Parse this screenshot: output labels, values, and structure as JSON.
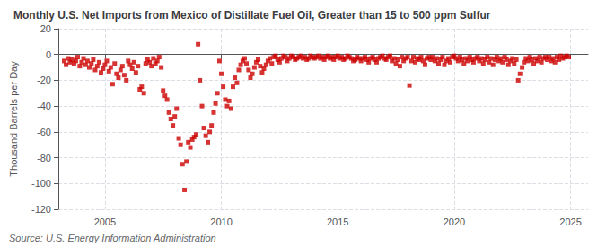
{
  "chart_data": {
    "type": "scatter",
    "title": "Monthly U.S. Net Imports from Mexico of Distillate Fuel Oil, Greater than 15 to 500 ppm Sulfur",
    "ylabel": "Thousand Barrels per Day",
    "annotation": "Source: U.S. Energy Information Administration",
    "color": "#cc0000",
    "marker": "square",
    "grid": true,
    "xlim": [
      2003.0,
      2025.75
    ],
    "xticks": [
      2005,
      2010,
      2015,
      2020,
      2025
    ],
    "ylim": [
      -120,
      20
    ],
    "yticks": [
      -120,
      -100,
      -80,
      -60,
      -40,
      -20,
      0,
      20
    ],
    "x": [
      2003.25,
      2003.33,
      2003.42,
      2003.5,
      2003.58,
      2003.67,
      2003.75,
      2003.83,
      2003.92,
      2004.0,
      2004.08,
      2004.17,
      2004.25,
      2004.33,
      2004.42,
      2004.5,
      2004.58,
      2004.67,
      2004.75,
      2004.83,
      2004.92,
      2005.0,
      2005.08,
      2005.17,
      2005.25,
      2005.33,
      2005.42,
      2005.5,
      2005.58,
      2005.67,
      2005.75,
      2005.83,
      2005.92,
      2006.0,
      2006.08,
      2006.17,
      2006.25,
      2006.33,
      2006.42,
      2006.5,
      2006.58,
      2006.67,
      2006.75,
      2006.83,
      2006.92,
      2007.0,
      2007.08,
      2007.17,
      2007.25,
      2007.33,
      2007.42,
      2007.5,
      2007.58,
      2007.67,
      2007.75,
      2007.83,
      2007.92,
      2008.0,
      2008.08,
      2008.17,
      2008.25,
      2008.33,
      2008.42,
      2008.5,
      2008.58,
      2008.67,
      2008.75,
      2008.83,
      2008.92,
      2009.0,
      2009.08,
      2009.17,
      2009.25,
      2009.33,
      2009.42,
      2009.5,
      2009.58,
      2009.67,
      2009.75,
      2009.83,
      2009.92,
      2010.0,
      2010.08,
      2010.17,
      2010.25,
      2010.33,
      2010.42,
      2010.5,
      2010.58,
      2010.67,
      2010.75,
      2010.83,
      2010.92,
      2011.0,
      2011.08,
      2011.17,
      2011.25,
      2011.33,
      2011.42,
      2011.5,
      2011.58,
      2011.67,
      2011.75,
      2011.83,
      2011.92,
      2012.0,
      2012.08,
      2012.17,
      2012.25,
      2012.33,
      2012.42,
      2012.5,
      2012.58,
      2012.67,
      2012.75,
      2012.83,
      2012.92,
      2013.0,
      2013.08,
      2013.17,
      2013.25,
      2013.33,
      2013.42,
      2013.5,
      2013.58,
      2013.67,
      2013.75,
      2013.83,
      2013.92,
      2014.0,
      2014.08,
      2014.17,
      2014.25,
      2014.33,
      2014.42,
      2014.5,
      2014.58,
      2014.67,
      2014.75,
      2014.83,
      2014.92,
      2015.0,
      2015.08,
      2015.17,
      2015.25,
      2015.33,
      2015.42,
      2015.5,
      2015.58,
      2015.67,
      2015.75,
      2015.83,
      2015.92,
      2016.0,
      2016.08,
      2016.17,
      2016.25,
      2016.33,
      2016.42,
      2016.5,
      2016.58,
      2016.67,
      2016.75,
      2016.83,
      2016.92,
      2017.0,
      2017.08,
      2017.17,
      2017.25,
      2017.33,
      2017.42,
      2017.5,
      2017.58,
      2017.67,
      2017.75,
      2017.83,
      2017.92,
      2018.0,
      2018.08,
      2018.17,
      2018.25,
      2018.33,
      2018.42,
      2018.5,
      2018.58,
      2018.67,
      2018.75,
      2018.83,
      2018.92,
      2019.0,
      2019.08,
      2019.17,
      2019.25,
      2019.33,
      2019.42,
      2019.5,
      2019.58,
      2019.67,
      2019.75,
      2019.83,
      2019.92,
      2020.0,
      2020.08,
      2020.17,
      2020.25,
      2020.33,
      2020.42,
      2020.5,
      2020.58,
      2020.67,
      2020.75,
      2020.83,
      2020.92,
      2021.0,
      2021.08,
      2021.17,
      2021.25,
      2021.33,
      2021.42,
      2021.5,
      2021.58,
      2021.67,
      2021.75,
      2021.83,
      2021.92,
      2022.0,
      2022.08,
      2022.17,
      2022.25,
      2022.33,
      2022.42,
      2022.5,
      2022.58,
      2022.67,
      2022.75,
      2022.83,
      2022.92,
      2023.0,
      2023.08,
      2023.17,
      2023.25,
      2023.33,
      2023.42,
      2023.5,
      2023.58,
      2023.67,
      2023.75,
      2023.83,
      2023.92,
      2024.0,
      2024.08,
      2024.17,
      2024.25,
      2024.33,
      2024.42,
      2024.5,
      2024.58,
      2024.67,
      2024.75,
      2024.83,
      2024.92
    ],
    "values": [
      -5,
      -8,
      -3,
      -6,
      -4,
      -7,
      -5,
      -2,
      -9,
      -6,
      -3,
      -8,
      -5,
      -10,
      -7,
      -4,
      -12,
      -9,
      -6,
      -14,
      -11,
      -8,
      -5,
      -13,
      -10,
      -23,
      -7,
      -15,
      -18,
      -12,
      -9,
      -16,
      -20,
      -5,
      -8,
      -11,
      -6,
      -14,
      -9,
      -27,
      -25,
      -30,
      -7,
      -4,
      -6,
      -9,
      -3,
      -7,
      -5,
      -2,
      -10,
      -28,
      -32,
      -35,
      -45,
      -50,
      -55,
      -48,
      -42,
      -65,
      -70,
      -85,
      -105,
      -83,
      -68,
      -72,
      -66,
      -64,
      -62,
      8,
      -20,
      -40,
      -57,
      -63,
      -68,
      -60,
      -55,
      -45,
      -38,
      -30,
      -5,
      -15,
      -25,
      -35,
      -40,
      -36,
      -42,
      -25,
      -18,
      -22,
      -12,
      -8,
      -5,
      -3,
      -7,
      -12,
      -18,
      -15,
      -10,
      -6,
      -4,
      -9,
      -14,
      -11,
      -8,
      -5,
      -3,
      -7,
      -2,
      -1,
      -4,
      -6,
      -3,
      -1,
      -2,
      -5,
      -3,
      -1,
      -2,
      -4,
      -3,
      -2,
      -1,
      -3,
      -2,
      -4,
      -3,
      -1,
      -2,
      -3,
      -2,
      -1,
      -3,
      -2,
      -4,
      -2,
      -1,
      -3,
      -2,
      -4,
      -2,
      -1,
      -3,
      -2,
      -4,
      -3,
      -1,
      -2,
      -3,
      -5,
      -4,
      -2,
      -3,
      -5,
      -3,
      -2,
      -4,
      -6,
      -3,
      -2,
      -4,
      -6,
      -3,
      -2,
      -1,
      -3,
      -4,
      -2,
      -1,
      -5,
      -3,
      -7,
      -4,
      -9,
      -2,
      -5,
      -3,
      -2,
      -24,
      -5,
      -2,
      -6,
      -3,
      -4,
      -2,
      -5,
      -8,
      -3,
      -2,
      -4,
      -2,
      -5,
      -3,
      -7,
      -4,
      -2,
      -8,
      -5,
      -3,
      -6,
      -2,
      -1,
      -3,
      -5,
      -2,
      -4,
      -7,
      -3,
      -5,
      -2,
      -4,
      -6,
      -3,
      -2,
      -5,
      -3,
      -7,
      -4,
      -2,
      -6,
      -3,
      -8,
      -4,
      -2,
      -5,
      -3,
      -6,
      -2,
      -4,
      -8,
      -5,
      -3,
      -7,
      -4,
      -20,
      -15,
      -10,
      -6,
      -3,
      -5,
      -2,
      -4,
      -7,
      -3,
      -5,
      -2,
      -6,
      -3,
      -2,
      -4,
      -2,
      -5,
      -3,
      -6,
      -2,
      -4,
      -1,
      -3,
      -2,
      -1,
      -2
    ]
  }
}
